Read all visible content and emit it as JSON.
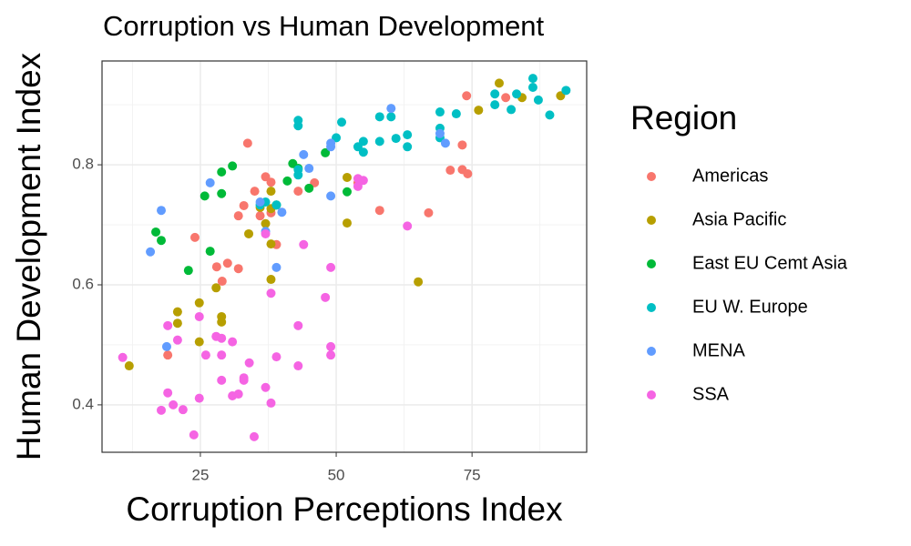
{
  "chart_data": {
    "type": "scatter",
    "title": "Corruption vs Human Development",
    "x_label": "Corruption Perceptions Index",
    "y_label": "Human Development Index",
    "legend_title": "Region",
    "legend_position": "right",
    "grid": true,
    "xlim": [
      6.9,
      96.1
    ],
    "ylim": [
      0.321,
      0.973
    ],
    "xticks": [
      25,
      50,
      75
    ],
    "yticks": [
      0.4,
      0.6,
      0.8
    ],
    "x_minor_grid": [
      12.5,
      37.5,
      62.5,
      87.5
    ],
    "y_minor_grid": [
      0.5,
      0.7,
      0.9
    ],
    "series": [
      {
        "name": "Americas",
        "color": "#F8766D",
        "x": [
          33.7,
          74,
          81.2,
          73.2,
          71,
          73.2,
          74.2,
          67,
          58,
          54,
          46,
          43,
          37,
          38,
          35,
          33,
          32,
          36,
          38,
          39,
          24,
          30,
          28,
          29,
          32,
          19
        ],
        "values": [
          0.836,
          0.915,
          0.912,
          0.833,
          0.791,
          0.792,
          0.785,
          0.72,
          0.724,
          0.77,
          0.77,
          0.756,
          0.78,
          0.771,
          0.756,
          0.732,
          0.715,
          0.715,
          0.72,
          0.667,
          0.679,
          0.636,
          0.63,
          0.606,
          0.627,
          0.483
        ]
      },
      {
        "name": "Asia Pacific",
        "color": "#B79F00",
        "x": [
          80,
          84.2,
          91.3,
          76.2,
          52,
          52,
          65.1,
          38,
          36,
          38,
          37,
          33.9,
          38,
          38,
          27.9,
          24.8,
          20.8,
          20.8,
          28.9,
          28.9,
          24.8,
          11.9
        ],
        "values": [
          0.936,
          0.912,
          0.915,
          0.891,
          0.779,
          0.703,
          0.605,
          0.756,
          0.729,
          0.727,
          0.702,
          0.685,
          0.668,
          0.609,
          0.595,
          0.57,
          0.555,
          0.536,
          0.547,
          0.538,
          0.505,
          0.465
        ]
      },
      {
        "name": "East EU Cemt Asia",
        "color": "#00BA38",
        "x": [
          30.9,
          28.9,
          42,
          43,
          48,
          45,
          41,
          25.8,
          28.9,
          52,
          39,
          16.8,
          17.8,
          26.8,
          22.8
        ],
        "values": [
          0.798,
          0.788,
          0.802,
          0.794,
          0.82,
          0.761,
          0.773,
          0.748,
          0.752,
          0.755,
          0.733,
          0.688,
          0.674,
          0.656,
          0.624
        ]
      },
      {
        "name": "EU W. Europe",
        "color": "#00BFC4",
        "x": [
          86.2,
          86.2,
          92.3,
          83.2,
          79.2,
          87.2,
          79.2,
          82.2,
          72.1,
          69.1,
          89.3,
          69.1,
          60.1,
          58,
          51,
          43,
          43,
          50,
          55,
          63.1,
          61,
          58,
          63.1,
          54,
          55,
          69.1,
          43,
          43,
          36,
          37,
          39
        ],
        "values": [
          0.944,
          0.929,
          0.924,
          0.918,
          0.918,
          0.908,
          0.9,
          0.892,
          0.885,
          0.888,
          0.883,
          0.861,
          0.88,
          0.88,
          0.871,
          0.874,
          0.865,
          0.845,
          0.839,
          0.85,
          0.844,
          0.839,
          0.83,
          0.83,
          0.821,
          0.845,
          0.792,
          0.783,
          0.733,
          0.738,
          0.733
        ]
      },
      {
        "name": "MENA",
        "color": "#619CFF",
        "x": [
          60.1,
          69.1,
          70.1,
          49,
          49,
          44,
          45,
          26.8,
          49,
          40,
          36,
          17.8,
          15.8,
          39,
          37,
          18.8
        ],
        "values": [
          0.894,
          0.852,
          0.836,
          0.836,
          0.83,
          0.817,
          0.794,
          0.77,
          0.748,
          0.721,
          0.738,
          0.724,
          0.655,
          0.629,
          0.689,
          0.497
        ]
      },
      {
        "name": "SSA",
        "color": "#F564E3",
        "x": [
          55,
          54,
          54,
          63.1,
          44,
          49,
          37,
          48,
          38,
          43,
          49,
          49,
          43,
          19,
          24.8,
          20.8,
          27.9,
          28.9,
          30.9,
          26,
          28.9,
          39,
          34,
          10.7,
          33,
          33,
          28.9,
          37,
          19,
          30.9,
          32,
          24.8,
          20,
          38,
          21.8,
          17.8,
          23.8,
          34.9
        ],
        "values": [
          0.774,
          0.777,
          0.764,
          0.698,
          0.667,
          0.629,
          0.685,
          0.579,
          0.586,
          0.532,
          0.497,
          0.483,
          0.465,
          0.532,
          0.547,
          0.508,
          0.514,
          0.511,
          0.505,
          0.483,
          0.483,
          0.48,
          0.47,
          0.479,
          0.445,
          0.441,
          0.441,
          0.429,
          0.42,
          0.415,
          0.418,
          0.411,
          0.4,
          0.403,
          0.392,
          0.391,
          0.35,
          0.347
        ]
      }
    ]
  }
}
